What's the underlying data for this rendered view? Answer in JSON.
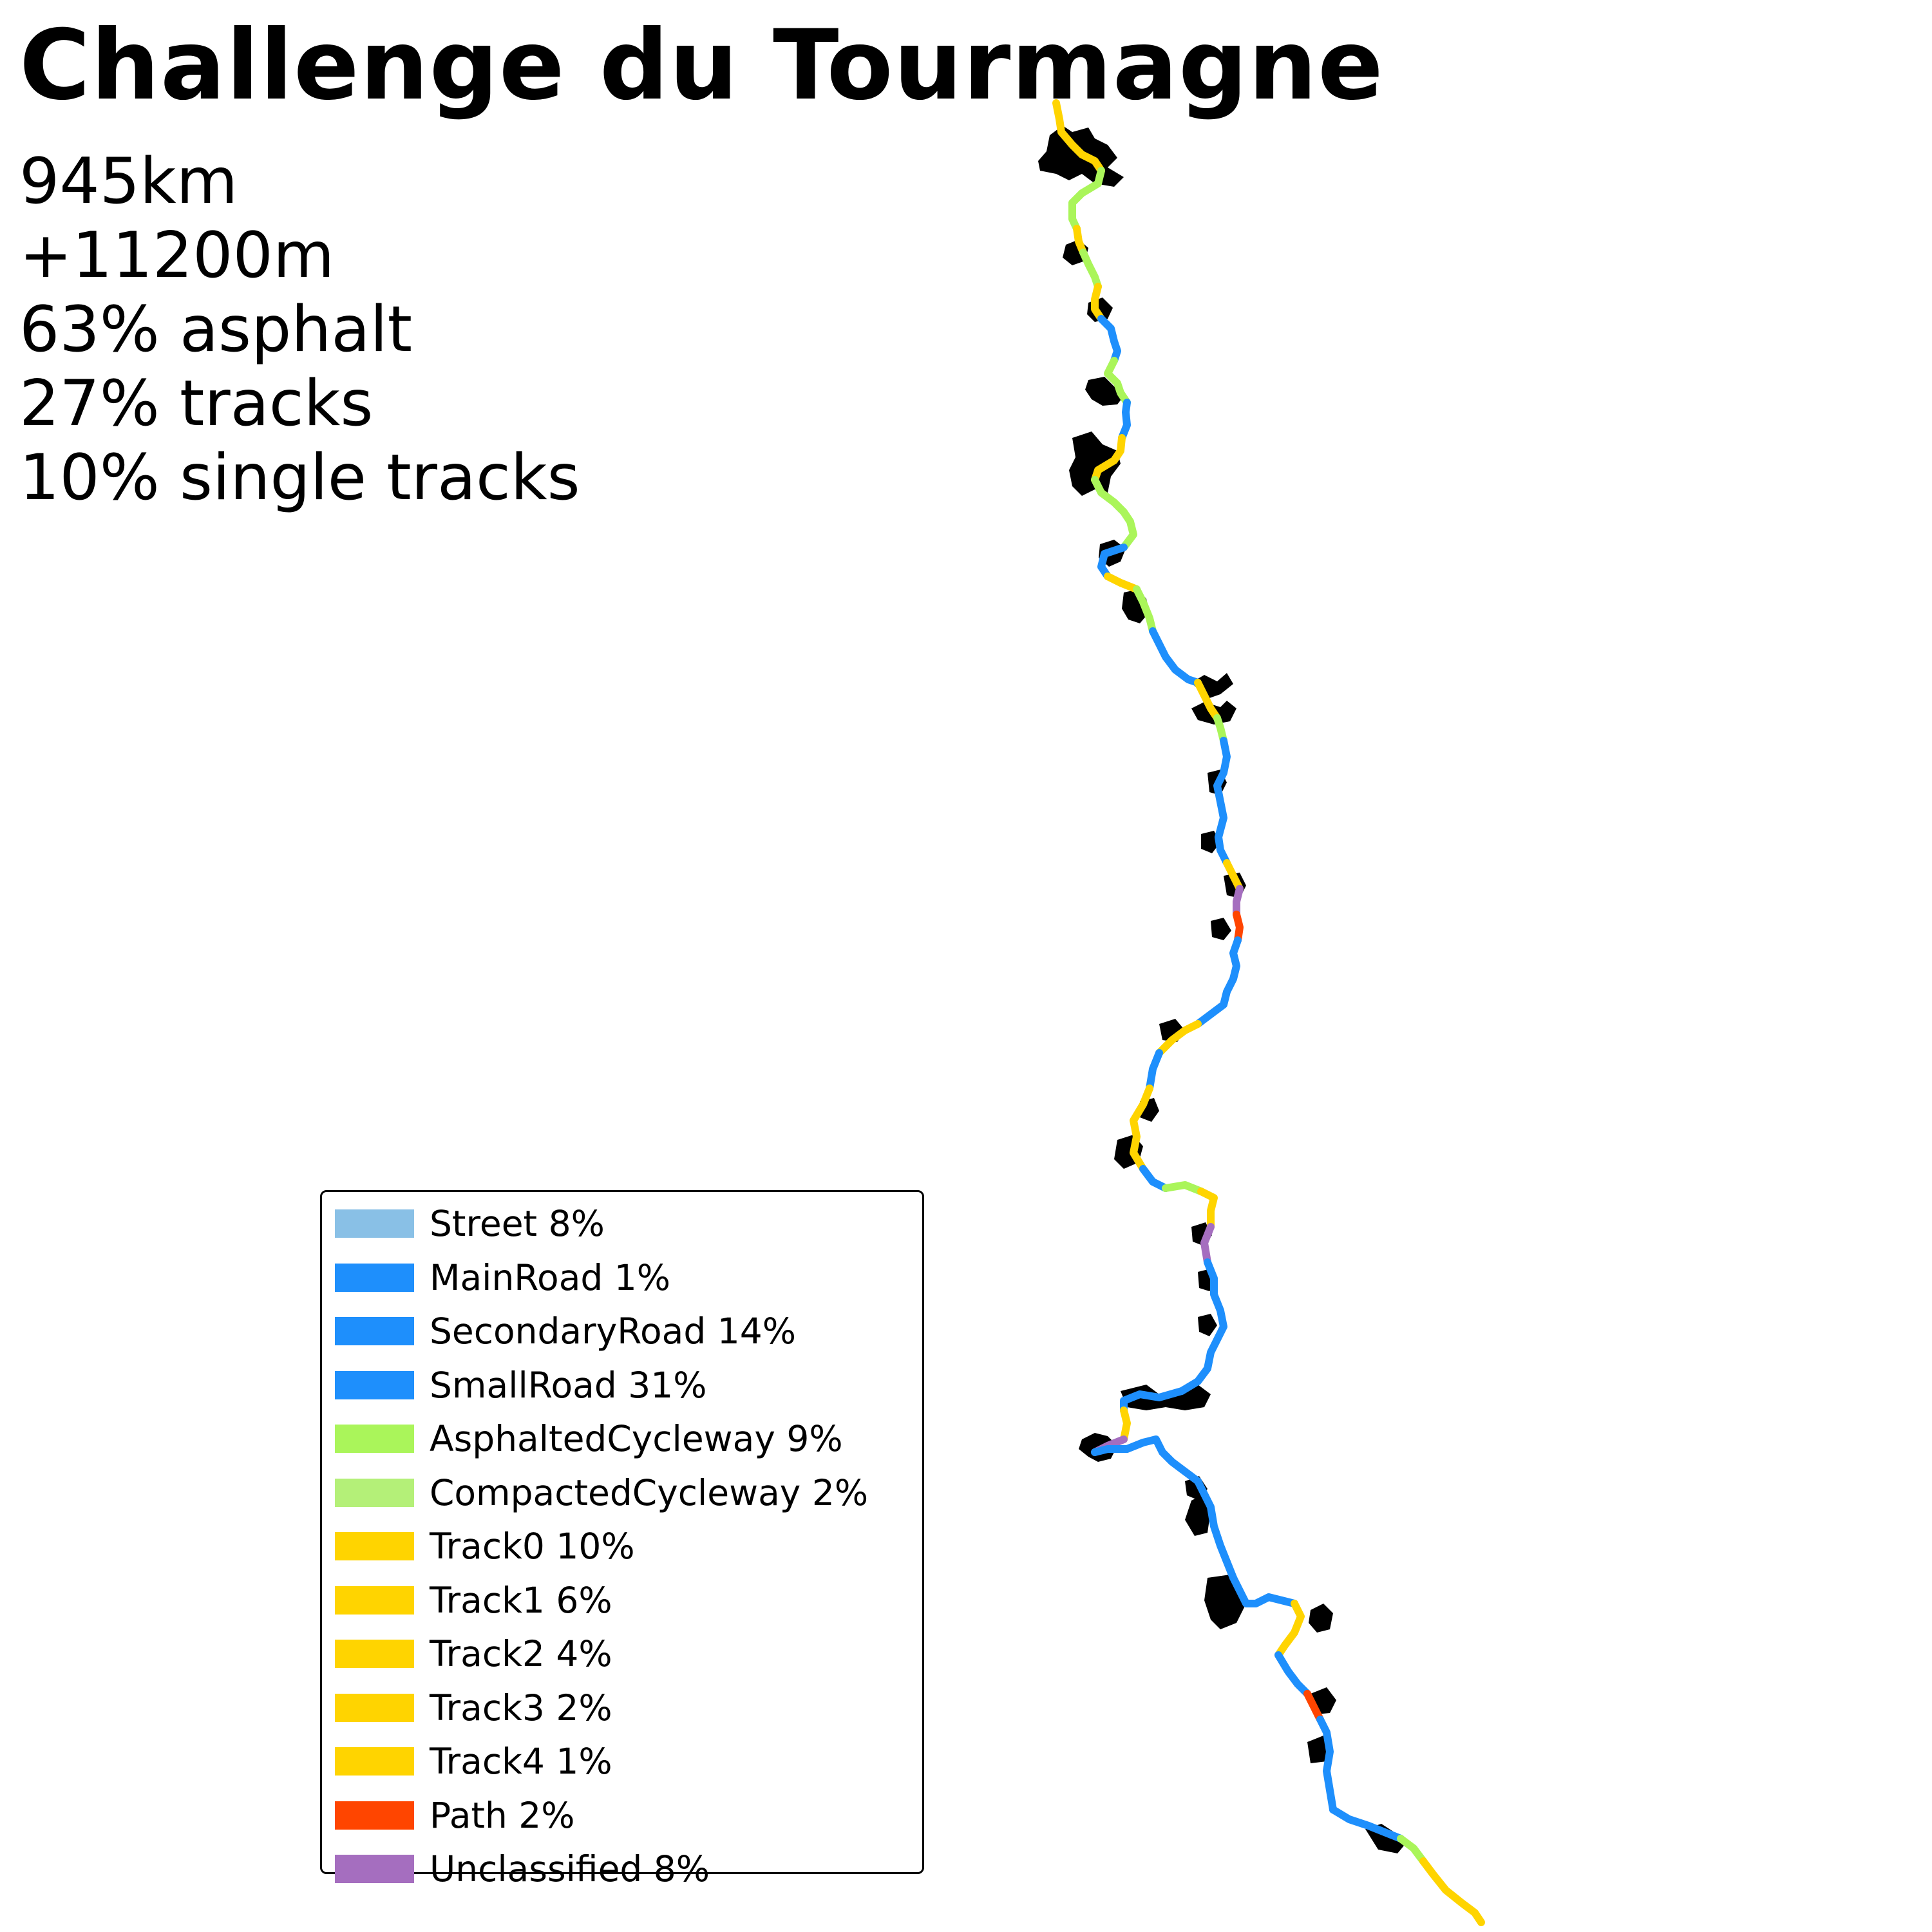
{
  "title": "Challenge du Tourmagne",
  "stats": [
    "945km",
    "+11200m",
    "63% asphalt",
    "27% tracks",
    "10% single tracks"
  ],
  "legend": [
    {
      "label": "Street 8%",
      "color": "#89c0e6"
    },
    {
      "label": "MainRoad 1%",
      "color": "#1e8ffc"
    },
    {
      "label": "SecondaryRoad 14%",
      "color": "#1e8ffc"
    },
    {
      "label": "SmallRoad 31%",
      "color": "#1e8ffc"
    },
    {
      "label": "AsphaltedCycleway 9%",
      "color": "#aaf55a"
    },
    {
      "label": "CompactedCycleway 2%",
      "color": "#b4f078"
    },
    {
      "label": "Track0 10%",
      "color": "#ffd400"
    },
    {
      "label": "Track1 6%",
      "color": "#ffd400"
    },
    {
      "label": "Track2 4%",
      "color": "#ffd400"
    },
    {
      "label": "Track3 2%",
      "color": "#ffd400"
    },
    {
      "label": "Track4 1%",
      "color": "#ffd400"
    },
    {
      "label": "Path 2%",
      "color": "#ff4500"
    },
    {
      "label": "Unclassified 8%",
      "color": "#a56ebf"
    }
  ]
}
